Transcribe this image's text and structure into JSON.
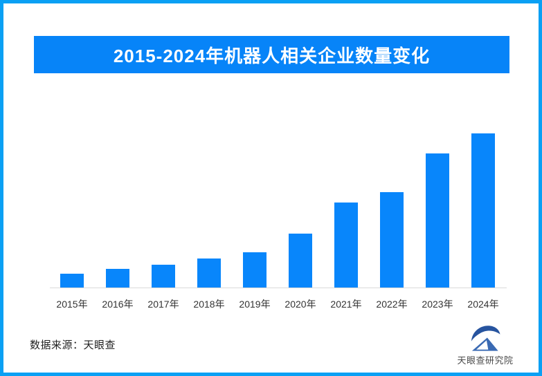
{
  "banner": {
    "title": "2015-2024年机器人相关企业数量变化"
  },
  "chart_data": {
    "type": "bar",
    "title": "2015-2024年机器人相关企业数量变化",
    "categories": [
      "2015年",
      "2016年",
      "2017年",
      "2018年",
      "2019年",
      "2020年",
      "2021年",
      "2022年",
      "2023年",
      "2024年"
    ],
    "values": [
      9,
      12,
      15,
      19,
      23,
      35,
      55,
      62,
      87,
      100
    ],
    "xlabel": "",
    "ylabel": "",
    "ylim": [
      0,
      100
    ],
    "units": "relative index (chart shows no y-axis or value labels; 2024 bar = 100)",
    "grid": false,
    "legend": false,
    "bar_color": "#0886fb",
    "axis_line_color": "#d9d9d9"
  },
  "footer": {
    "source": "数据来源：天眼查",
    "logo_label": "天眼查研究院"
  },
  "colors": {
    "frame_border": "#0aa0f4",
    "banner_bg": "#0784f8",
    "banner_text": "#ffffff",
    "axis_label": "#333333",
    "source_text": "#222222",
    "logo_text": "#4a4a4a",
    "logo_blue_dark": "#27549f",
    "logo_blue_mid": "#3a6ab3"
  }
}
